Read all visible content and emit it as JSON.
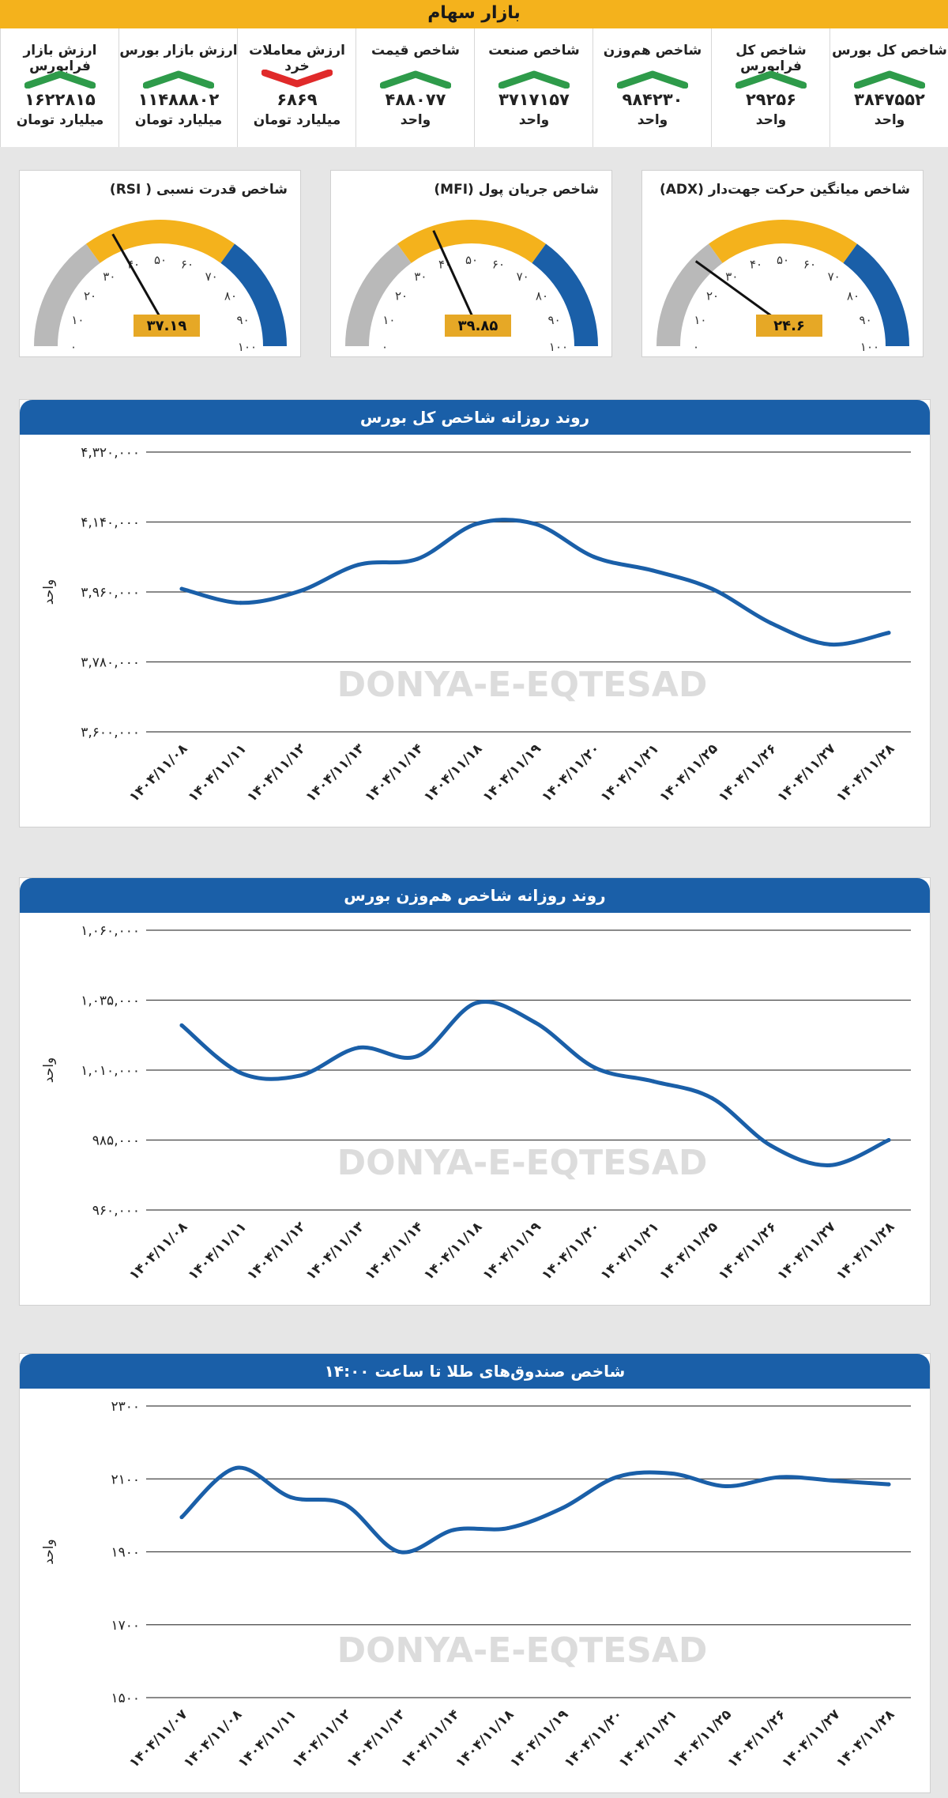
{
  "header": {
    "title": "بازار سهام"
  },
  "kpis": [
    {
      "label": "شاخص کل بورس",
      "value": "۳۸۴۷۵۵۲",
      "unit": "واحد",
      "trend": "up"
    },
    {
      "label": "شاخص کل فرابورس",
      "value": "۲۹۲۵۶",
      "unit": "واحد",
      "trend": "up"
    },
    {
      "label": "شاخص هم‌وزن",
      "value": "۹۸۴۲۳۰",
      "unit": "واحد",
      "trend": "up"
    },
    {
      "label": "شاخص صنعت",
      "value": "۳۷۱۷۱۵۷",
      "unit": "واحد",
      "trend": "up"
    },
    {
      "label": "شاخص قیمت",
      "value": "۴۸۸۰۷۷",
      "unit": "واحد",
      "trend": "up"
    },
    {
      "label": "ارزش معاملات خرد",
      "value": "۶۸۶۹",
      "unit": "میلیارد تومان",
      "trend": "down"
    },
    {
      "label": "ارزش بازار بورس",
      "value": "۱۱۴۸۸۸۰۲",
      "unit": "میلیارد تومان",
      "trend": "up"
    },
    {
      "label": "ارزش بازار فرابورس",
      "value": "۱۶۲۲۸۱۵",
      "unit": "میلیارد تومان",
      "trend": "up"
    }
  ],
  "colors": {
    "accent": "#f4b21c",
    "blue": "#1a5fa8",
    "green": "#2e9b4a",
    "red": "#e02a2a",
    "grey": "#b9b9b9",
    "needle_label": "#e6a826"
  },
  "gauges": [
    {
      "title": "شاخص میانگین حرکت جهت‌دار (ADX)",
      "value": 24.6,
      "value_label": "۲۴.۶",
      "ticks": [
        "۰",
        "۱۰",
        "۲۰",
        "۳۰",
        "۴۰",
        "۵۰",
        "۶۰",
        "۷۰",
        "۸۰",
        "۹۰",
        "۱۰۰"
      ]
    },
    {
      "title": "شاخص جریان پول (MFI)",
      "value": 39.85,
      "value_label": "۳۹.۸۵",
      "ticks": [
        "۰",
        "۱۰",
        "۲۰",
        "۳۰",
        "۴۰",
        "۵۰",
        "۶۰",
        "۷۰",
        "۸۰",
        "۹۰",
        "۱۰۰"
      ]
    },
    {
      "title": "شاخص قدرت نسبی ( RSI)",
      "value": 37.19,
      "value_label": "۳۷.۱۹",
      "ticks": [
        "۰",
        "۱۰",
        "۲۰",
        "۳۰",
        "۴۰",
        "۵۰",
        "۶۰",
        "۷۰",
        "۸۰",
        "۹۰",
        "۱۰۰"
      ]
    }
  ],
  "watermark": {
    "text": "DONYA-E-EQTESAD"
  },
  "chart_data": [
    {
      "type": "line",
      "title": "روند روزانه شاخص کل بورس",
      "ylabel": "واحد",
      "ylim": [
        3600000,
        4320000
      ],
      "yticks": [
        3600000,
        3780000,
        3960000,
        4140000,
        4320000
      ],
      "ytick_labels": [
        "۳,۶۰۰,۰۰۰",
        "۳,۷۸۰,۰۰۰",
        "۳,۹۶۰,۰۰۰",
        "۴,۱۴۰,۰۰۰",
        "۴,۳۲۰,۰۰۰"
      ],
      "categories": [
        "۱۴۰۴/۱۱/۰۸",
        "۱۴۰۴/۱۱/۱۱",
        "۱۴۰۴/۱۱/۱۲",
        "۱۴۰۴/۱۱/۱۳",
        "۱۴۰۴/۱۱/۱۴",
        "۱۴۰۴/۱۱/۱۸",
        "۱۴۰۴/۱۱/۱۹",
        "۱۴۰۴/۱۱/۲۰",
        "۱۴۰۴/۱۱/۲۱",
        "۱۴۰۴/۱۱/۲۵",
        "۱۴۰۴/۱۱/۲۶",
        "۱۴۰۴/۱۱/۲۷",
        "۱۴۰۴/۱۱/۲۸"
      ],
      "values": [
        3968000,
        3932000,
        3962000,
        4030000,
        4045000,
        4135000,
        4135000,
        4050000,
        4015000,
        3968000,
        3880000,
        3825000,
        3855000
      ]
    },
    {
      "type": "line",
      "title": "روند روزانه شاخص هم‌وزن بورس",
      "ylabel": "واحد",
      "ylim": [
        960000,
        1060000
      ],
      "yticks": [
        960000,
        985000,
        1010000,
        1035000,
        1060000
      ],
      "ytick_labels": [
        "۹۶۰,۰۰۰",
        "۹۸۵,۰۰۰",
        "۱,۰۱۰,۰۰۰",
        "۱,۰۳۵,۰۰۰",
        "۱,۰۶۰,۰۰۰"
      ],
      "categories": [
        "۱۴۰۴/۱۱/۰۸",
        "۱۴۰۴/۱۱/۱۱",
        "۱۴۰۴/۱۱/۱۲",
        "۱۴۰۴/۱۱/۱۳",
        "۱۴۰۴/۱۱/۱۴",
        "۱۴۰۴/۱۱/۱۸",
        "۱۴۰۴/۱۱/۱۹",
        "۱۴۰۴/۱۱/۲۰",
        "۱۴۰۴/۱۱/۲۱",
        "۱۴۰۴/۱۱/۲۵",
        "۱۴۰۴/۱۱/۲۶",
        "۱۴۰۴/۱۱/۲۷",
        "۱۴۰۴/۱۱/۲۸"
      ],
      "values": [
        1026000,
        1009000,
        1008000,
        1018000,
        1015000,
        1034000,
        1027000,
        1011000,
        1006000,
        1000000,
        983000,
        976000,
        985000
      ]
    },
    {
      "type": "line",
      "title": "شاخص صندوق‌های طلا تا ساعت ۱۴:۰۰",
      "ylabel": "واحد",
      "ylim": [
        1500,
        2300
      ],
      "yticks": [
        1500,
        1700,
        1900,
        2100,
        2300
      ],
      "ytick_labels": [
        "۱۵۰۰",
        "۱۷۰۰",
        "۱۹۰۰",
        "۲۱۰۰",
        "۲۳۰۰"
      ],
      "categories": [
        "۱۴۰۴/۱۱/۰۷",
        "۱۴۰۴/۱۱/۰۸",
        "۱۴۰۴/۱۱/۱۱",
        "۱۴۰۴/۱۱/۱۲",
        "۱۴۰۴/۱۱/۱۳",
        "۱۴۰۴/۱۱/۱۴",
        "۱۴۰۴/۱۱/۱۸",
        "۱۴۰۴/۱۱/۱۹",
        "۱۴۰۴/۱۱/۲۰",
        "۱۴۰۴/۱۱/۲۱",
        "۱۴۰۴/۱۱/۲۵",
        "۱۴۰۴/۱۱/۲۶",
        "۱۴۰۴/۱۱/۲۷",
        "۱۴۰۴/۱۱/۲۸"
      ],
      "values": [
        1995,
        2130,
        2050,
        2030,
        1900,
        1960,
        1965,
        2020,
        2105,
        2115,
        2080,
        2105,
        2095,
        2085
      ]
    }
  ]
}
